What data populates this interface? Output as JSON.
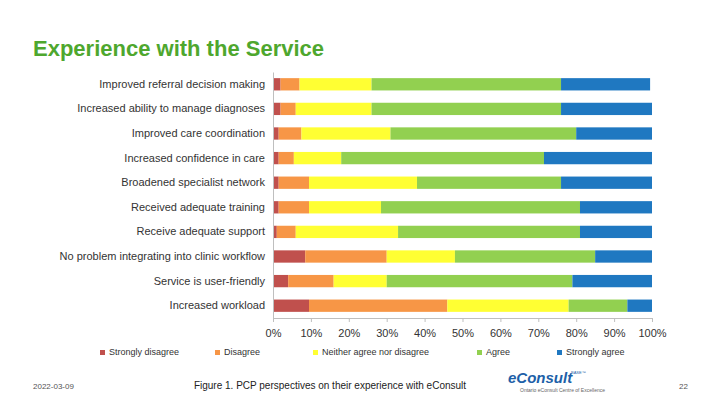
{
  "chart_data": {
    "type": "bar",
    "title": "Experience with the Service",
    "orientation": "horizontal",
    "stacked": true,
    "grid": false,
    "legend": "bottom",
    "categories": [
      "Improved referral decision making",
      "Increased ability to manage diagnoses",
      "Improved care coordination",
      "Increased confidence in care",
      "Broadened specialist network",
      "Received adequate training",
      "Receive adequate support",
      "No problem integrating into clinic workflow",
      "Service is user-friendly",
      "Increased workload"
    ],
    "series": [
      {
        "name": "Strongly disagree",
        "color": "#c0504d",
        "values": [
          2,
          2,
          1.5,
          1.5,
          1.5,
          1.5,
          1,
          8.5,
          4,
          9.5
        ]
      },
      {
        "name": "Disagree",
        "color": "#f79646",
        "values": [
          5,
          4,
          6,
          4,
          8,
          8,
          5,
          21.5,
          12,
          36.5
        ]
      },
      {
        "name": "Neither agree nor disagree",
        "color": "#ffff33",
        "values": [
          19,
          20,
          23.5,
          12.5,
          28.5,
          19,
          27,
          18,
          14,
          32
        ]
      },
      {
        "name": "Agree",
        "color": "#92d050",
        "values": [
          50,
          50,
          49,
          53.5,
          38,
          52.5,
          48,
          37,
          49,
          15.5
        ]
      },
      {
        "name": "Strongly agree",
        "color": "#1f78c1",
        "values": [
          23.5,
          24,
          20,
          28.5,
          24,
          19,
          19,
          15,
          21,
          6.5
        ]
      }
    ],
    "xlim": [
      0,
      100
    ],
    "xticks": [
      {
        "value": 0,
        "label": "0%"
      },
      {
        "value": 10,
        "label": "10%"
      },
      {
        "value": 20,
        "label": "20%"
      },
      {
        "value": 30,
        "label": "30%"
      },
      {
        "value": 40,
        "label": "40%"
      },
      {
        "value": 50,
        "label": "50%"
      },
      {
        "value": 60,
        "label": "60%"
      },
      {
        "value": 70,
        "label": "70%"
      },
      {
        "value": 80,
        "label": "80%"
      },
      {
        "value": 90,
        "label": "90%"
      },
      {
        "value": 100,
        "label": "100%"
      }
    ]
  },
  "slide": {
    "date": "2022-03-09",
    "caption": "Figure 1. PCP perspectives on their experience with eConsult",
    "page": "22",
    "logo": {
      "name": "eConsult",
      "suffix": "BASE™",
      "subtitle": "Ontario eConsult Centre of Excellence"
    }
  }
}
